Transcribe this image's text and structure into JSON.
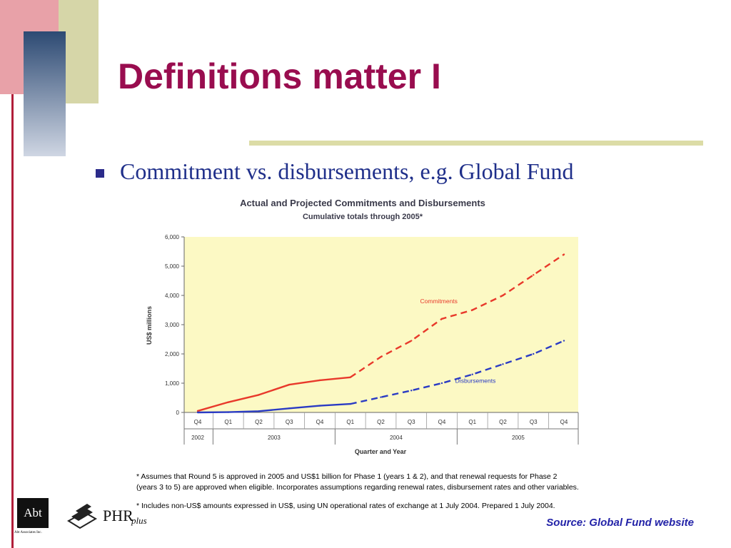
{
  "slide": {
    "title": "Definitions matter I",
    "bullet": "Commitment vs. disbursements, e.g. Global Fund",
    "source": "Source: Global Fund website",
    "colors": {
      "title": "#990d4f",
      "bullet": "#1f2f8a",
      "source": "#2323a8",
      "plot_bg": "#fcf9c4",
      "commitments": "#e8392b",
      "disbursements": "#2a3bc4"
    }
  },
  "notes": {
    "line1": "* Assumes that Round 5 is approved in 2005 and US$1 billion for Phase 1 (years 1 & 2), and that renewal requests for Phase 2",
    "line2": "(years 3 to 5) are approved when eligible. Incorporates assumptions regarding renewal rates, disbursement rates and other variables.",
    "line3": "* Includes non-US$ amounts expressed in US$, using UN operational rates of exchange at 1 July 2004. Prepared 1 July 2004."
  },
  "logos": {
    "abt_text": "Abt",
    "abt_caption": "Abt Associates Inc.",
    "phr_text": "PHR",
    "phr_suffix": "plus"
  },
  "chart_data": {
    "type": "line",
    "title": "Actual and Projected Commitments and Disbursements",
    "subtitle": "Cumulative totals through 2005*",
    "xlabel": "Quarter and Year",
    "ylabel": "US$ millions",
    "ylim": [
      0,
      6000
    ],
    "yticks": [
      "0",
      "1,000",
      "2,000",
      "3,000",
      "4,000",
      "5,000",
      "6,000"
    ],
    "categories": [
      "Q4",
      "Q1",
      "Q2",
      "Q3",
      "Q4",
      "Q1",
      "Q2",
      "Q3",
      "Q4",
      "Q1",
      "Q2",
      "Q3",
      "Q4"
    ],
    "year_groups": [
      {
        "label": "2002",
        "span": 1
      },
      {
        "label": "2003",
        "span": 4
      },
      {
        "label": "2004",
        "span": 4
      },
      {
        "label": "2005",
        "span": 4
      }
    ],
    "actual_through_index": 5,
    "series": [
      {
        "name": "Commitments",
        "color": "#e8392b",
        "values": [
          50,
          350,
          600,
          950,
          1100,
          1200,
          1900,
          2450,
          3200,
          3500,
          4000,
          4700,
          5400
        ]
      },
      {
        "name": "Disbursements",
        "color": "#2a3bc4",
        "values": [
          0,
          10,
          40,
          140,
          230,
          290,
          520,
          750,
          1000,
          1300,
          1650,
          2000,
          2450
        ]
      }
    ],
    "grid": false,
    "legend": "inline labels"
  }
}
